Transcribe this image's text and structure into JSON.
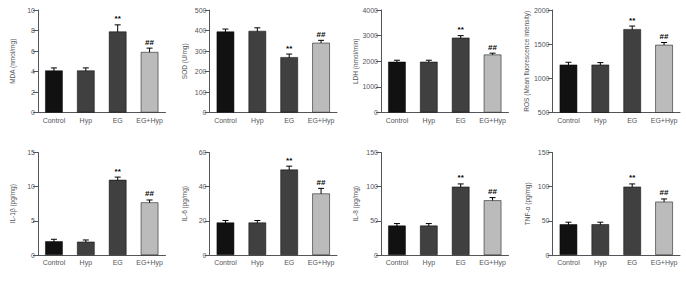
{
  "chart_data": [
    {
      "type": "bar",
      "ylabel": "MDA (nmol/mg)",
      "categories": [
        "Control",
        "Hyp",
        "EG",
        "EG+Hyp"
      ],
      "values": [
        4.1,
        4.1,
        7.9,
        5.9
      ],
      "errors": [
        0.25,
        0.25,
        0.65,
        0.38
      ],
      "colors": [
        "#111111",
        "#404040",
        "#404040",
        "#bbbbbb"
      ],
      "ylim": [
        0,
        10
      ],
      "yticks": [
        0,
        2,
        4,
        6,
        8,
        10
      ],
      "grid": false,
      "annotations": [
        {
          "x": "EG",
          "text": "**"
        },
        {
          "x": "EG+Hyp",
          "text": "##"
        }
      ]
    },
    {
      "type": "bar",
      "ylabel": "SOD (U/mg)",
      "categories": [
        "Control",
        "Hyp",
        "EG",
        "EG+Hyp"
      ],
      "values": [
        395,
        398,
        270,
        340
      ],
      "errors": [
        12,
        15,
        15,
        12
      ],
      "colors": [
        "#111111",
        "#404040",
        "#404040",
        "#bbbbbb"
      ],
      "ylim": [
        0,
        500
      ],
      "yticks": [
        0,
        100,
        200,
        300,
        400,
        500
      ],
      "grid": false,
      "annotations": [
        {
          "x": "EG",
          "text": "**"
        },
        {
          "x": "EG+Hyp",
          "text": "##"
        }
      ]
    },
    {
      "type": "bar",
      "ylabel": "LDH (nmol/min)",
      "categories": [
        "Control",
        "Hyp",
        "EG",
        "EG+Hyp"
      ],
      "values": [
        1980,
        1980,
        2920,
        2260
      ],
      "errors": [
        60,
        60,
        80,
        55
      ],
      "colors": [
        "#111111",
        "#404040",
        "#404040",
        "#bbbbbb"
      ],
      "ylim": [
        0,
        4000
      ],
      "yticks": [
        0,
        1000,
        2000,
        3000,
        4000
      ],
      "grid": false,
      "annotations": [
        {
          "x": "EG",
          "text": "**"
        },
        {
          "x": "EG+Hyp",
          "text": "##"
        }
      ]
    },
    {
      "type": "bar",
      "ylabel": "ROS (Mean fluorescence intensity)",
      "categories": [
        "Control",
        "Hyp",
        "EG",
        "EG+Hyp"
      ],
      "values": [
        1200,
        1200,
        1720,
        1490
      ],
      "errors": [
        35,
        30,
        45,
        35
      ],
      "colors": [
        "#111111",
        "#404040",
        "#404040",
        "#bbbbbb"
      ],
      "ylim": [
        500,
        2000
      ],
      "yticks": [
        500,
        1000,
        1500,
        2000
      ],
      "grid": false,
      "annotations": [
        {
          "x": "EG",
          "text": "**"
        },
        {
          "x": "EG+Hyp",
          "text": "##"
        }
      ]
    },
    {
      "type": "bar",
      "ylabel": "IL-1β (pg/mg)",
      "categories": [
        "Control",
        "Hyp",
        "EG",
        "EG+Hyp"
      ],
      "values": [
        2.0,
        1.95,
        11.0,
        7.7
      ],
      "errors": [
        0.3,
        0.25,
        0.4,
        0.35
      ],
      "colors": [
        "#111111",
        "#404040",
        "#404040",
        "#bbbbbb"
      ],
      "ylim": [
        0,
        15
      ],
      "yticks": [
        0,
        5,
        10,
        15
      ],
      "grid": false,
      "annotations": [
        {
          "x": "EG",
          "text": "**"
        },
        {
          "x": "EG+Hyp",
          "text": "##"
        }
      ]
    },
    {
      "type": "bar",
      "ylabel": "IL-6 (pg/mg)",
      "categories": [
        "Control",
        "Hyp",
        "EG",
        "EG+Hyp"
      ],
      "values": [
        19,
        19,
        50,
        36
      ],
      "errors": [
        1.2,
        1.2,
        2.0,
        3.0
      ],
      "colors": [
        "#111111",
        "#404040",
        "#404040",
        "#bbbbbb"
      ],
      "ylim": [
        0,
        60
      ],
      "yticks": [
        0,
        20,
        40,
        60
      ],
      "grid": false,
      "annotations": [
        {
          "x": "EG",
          "text": "**"
        },
        {
          "x": "EG+Hyp",
          "text": "##"
        }
      ]
    },
    {
      "type": "bar",
      "ylabel": "IL-8 (pg/mg)",
      "categories": [
        "Control",
        "Hyp",
        "EG",
        "EG+Hyp"
      ],
      "values": [
        43,
        43,
        100,
        80
      ],
      "errors": [
        3,
        3,
        4,
        4
      ],
      "colors": [
        "#111111",
        "#404040",
        "#404040",
        "#bbbbbb"
      ],
      "ylim": [
        0,
        150
      ],
      "yticks": [
        0,
        50,
        100,
        150
      ],
      "grid": false,
      "annotations": [
        {
          "x": "EG",
          "text": "**"
        },
        {
          "x": "EG+Hyp",
          "text": "##"
        }
      ]
    },
    {
      "type": "bar",
      "ylabel": "TNF-α (pg/mg)",
      "categories": [
        "Control",
        "Hyp",
        "EG",
        "EG+Hyp"
      ],
      "values": [
        45,
        45,
        100,
        78
      ],
      "errors": [
        3,
        3,
        4,
        4
      ],
      "colors": [
        "#111111",
        "#404040",
        "#404040",
        "#bbbbbb"
      ],
      "ylim": [
        0,
        150
      ],
      "yticks": [
        0,
        50,
        100,
        150
      ],
      "grid": false,
      "annotations": [
        {
          "x": "EG",
          "text": "**"
        },
        {
          "x": "EG+Hyp",
          "text": "##"
        }
      ]
    }
  ]
}
